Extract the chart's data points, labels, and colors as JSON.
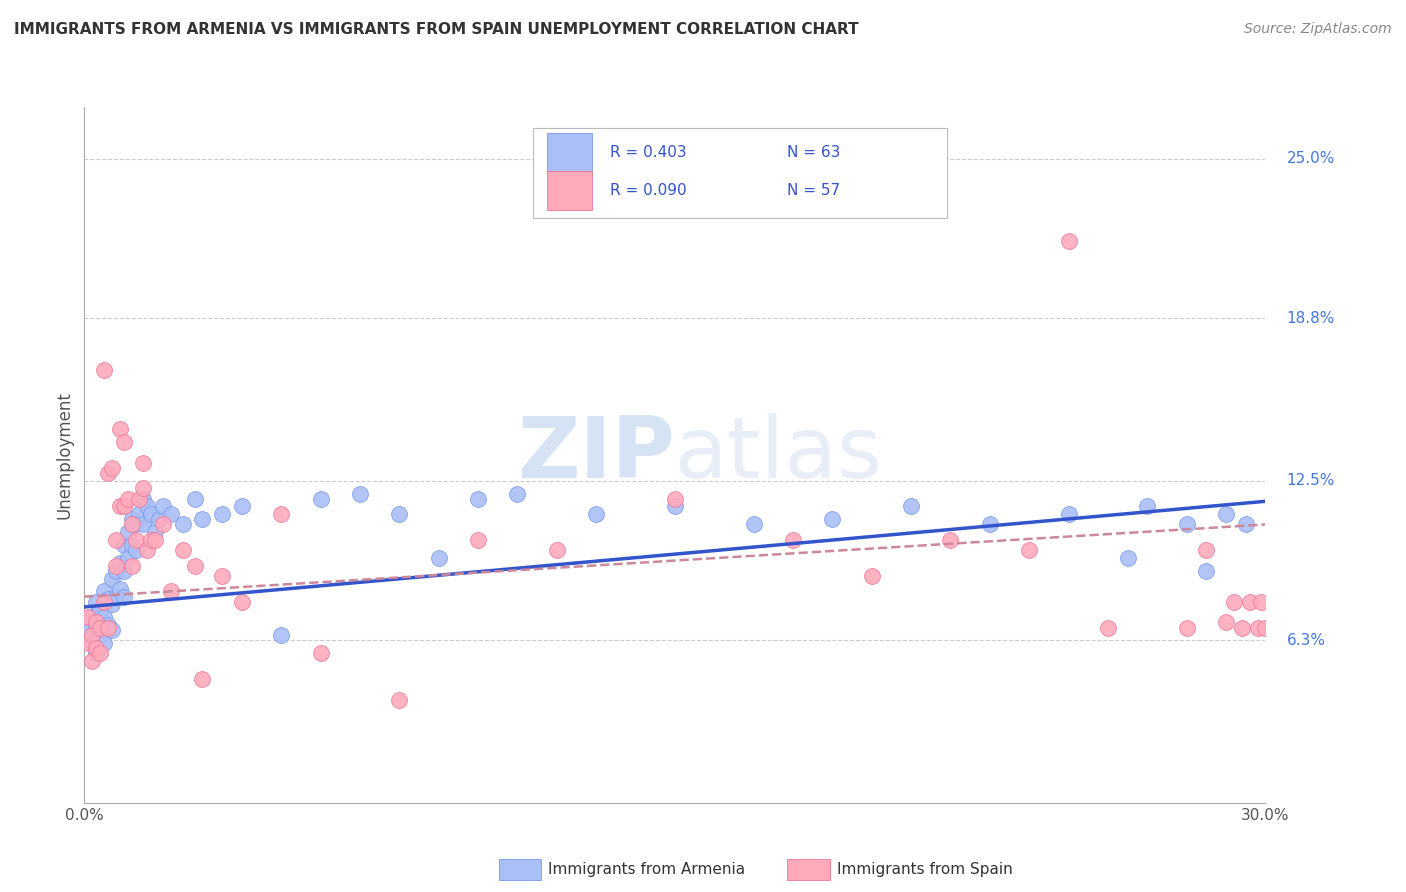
{
  "title": "IMMIGRANTS FROM ARMENIA VS IMMIGRANTS FROM SPAIN UNEMPLOYMENT CORRELATION CHART",
  "source": "Source: ZipAtlas.com",
  "ylabel": "Unemployment",
  "xlim": [
    0.0,
    0.3
  ],
  "ylim": [
    0.0,
    0.27
  ],
  "yticks": [
    0.063,
    0.125,
    0.188,
    0.25
  ],
  "ytick_labels": [
    "6.3%",
    "12.5%",
    "18.8%",
    "25.0%"
  ],
  "xticks": [
    0.0,
    0.05,
    0.1,
    0.15,
    0.2,
    0.25,
    0.3
  ],
  "xtick_labels": [
    "0.0%",
    "",
    "",
    "",
    "",
    "",
    "30.0%"
  ],
  "armenia_color": "#aabff5",
  "armenia_edge": "#7799ee",
  "spain_color": "#ffaabb",
  "spain_edge": "#ee7799",
  "bg_color": "#ffffff",
  "watermark_color": "#dde8f5",
  "trend_armenia_color": "#3355cc",
  "trend_spain_color": "#cc8899",
  "legend_R_armenia": "R = 0.403",
  "legend_N_armenia": "N = 63",
  "legend_R_spain": "R = 0.090",
  "legend_N_spain": "N = 57",
  "legend_text_armenia": "Immigrants from Armenia",
  "legend_text_spain": "Immigrants from Spain",
  "armenia_scatter_x": [
    0.001,
    0.002,
    0.002,
    0.003,
    0.003,
    0.003,
    0.004,
    0.004,
    0.005,
    0.005,
    0.005,
    0.006,
    0.006,
    0.007,
    0.007,
    0.007,
    0.008,
    0.008,
    0.009,
    0.009,
    0.01,
    0.01,
    0.01,
    0.011,
    0.011,
    0.012,
    0.012,
    0.013,
    0.013,
    0.014,
    0.015,
    0.015,
    0.016,
    0.017,
    0.018,
    0.019,
    0.02,
    0.022,
    0.025,
    0.028,
    0.03,
    0.035,
    0.04,
    0.05,
    0.06,
    0.07,
    0.08,
    0.09,
    0.1,
    0.11,
    0.13,
    0.15,
    0.17,
    0.19,
    0.21,
    0.23,
    0.25,
    0.265,
    0.27,
    0.28,
    0.285,
    0.29,
    0.295
  ],
  "armenia_scatter_y": [
    0.068,
    0.072,
    0.062,
    0.078,
    0.068,
    0.058,
    0.075,
    0.065,
    0.082,
    0.072,
    0.062,
    0.079,
    0.069,
    0.087,
    0.077,
    0.067,
    0.09,
    0.08,
    0.093,
    0.083,
    0.1,
    0.09,
    0.08,
    0.105,
    0.095,
    0.11,
    0.1,
    0.108,
    0.098,
    0.112,
    0.118,
    0.108,
    0.115,
    0.112,
    0.105,
    0.11,
    0.115,
    0.112,
    0.108,
    0.118,
    0.11,
    0.112,
    0.115,
    0.065,
    0.118,
    0.12,
    0.112,
    0.095,
    0.118,
    0.12,
    0.112,
    0.115,
    0.108,
    0.11,
    0.115,
    0.108,
    0.112,
    0.095,
    0.115,
    0.108,
    0.09,
    0.112,
    0.108
  ],
  "spain_scatter_x": [
    0.001,
    0.001,
    0.002,
    0.002,
    0.003,
    0.003,
    0.004,
    0.004,
    0.005,
    0.005,
    0.006,
    0.006,
    0.007,
    0.008,
    0.008,
    0.009,
    0.009,
    0.01,
    0.01,
    0.011,
    0.012,
    0.012,
    0.013,
    0.014,
    0.015,
    0.015,
    0.016,
    0.017,
    0.018,
    0.02,
    0.022,
    0.025,
    0.028,
    0.03,
    0.035,
    0.04,
    0.05,
    0.06,
    0.08,
    0.1,
    0.12,
    0.15,
    0.18,
    0.2,
    0.22,
    0.24,
    0.25,
    0.26,
    0.28,
    0.285,
    0.29,
    0.292,
    0.294,
    0.296,
    0.298,
    0.299,
    0.3
  ],
  "spain_scatter_y": [
    0.062,
    0.072,
    0.065,
    0.055,
    0.07,
    0.06,
    0.068,
    0.058,
    0.078,
    0.168,
    0.068,
    0.128,
    0.13,
    0.102,
    0.092,
    0.145,
    0.115,
    0.14,
    0.115,
    0.118,
    0.108,
    0.092,
    0.102,
    0.118,
    0.132,
    0.122,
    0.098,
    0.102,
    0.102,
    0.108,
    0.082,
    0.098,
    0.092,
    0.048,
    0.088,
    0.078,
    0.112,
    0.058,
    0.04,
    0.102,
    0.098,
    0.118,
    0.102,
    0.088,
    0.102,
    0.098,
    0.218,
    0.068,
    0.068,
    0.098,
    0.07,
    0.078,
    0.068,
    0.078,
    0.068,
    0.078,
    0.068
  ],
  "armenia_trend_x": [
    0.0,
    0.3
  ],
  "armenia_trend_y": [
    0.076,
    0.117
  ],
  "spain_trend_x": [
    0.0,
    0.3
  ],
  "spain_trend_y": [
    0.08,
    0.108
  ]
}
